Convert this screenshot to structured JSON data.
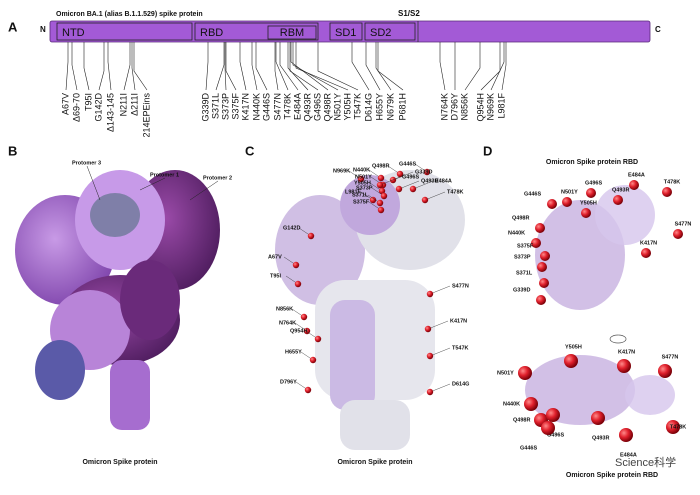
{
  "panel_a": {
    "label": "A",
    "title": "Omicron BA.1 (alias B.1.1.529) spike protein",
    "cleavage": "S1/S2",
    "n_term": "N",
    "c_term": "C",
    "domains": [
      "NTD",
      "RBD",
      "RBM",
      "SD1",
      "SD2"
    ],
    "mutations": [
      "A67V",
      "Δ69-70",
      "T95I",
      "G142D",
      "Δ143-145",
      "N211I",
      "Δ211I",
      "214EPEins",
      "G339D",
      "S371L",
      "S373P",
      "S375F",
      "K417N",
      "N440K",
      "G446S",
      "S477N",
      "T478K",
      "E484A",
      "Q493R",
      "G496S",
      "Q498R",
      "N501Y",
      "Y505H",
      "T547K",
      "D614G",
      "H655Y",
      "N679K",
      "P681H",
      "N764K",
      "D796Y",
      "N856K",
      "Q954H",
      "N969K",
      "L981F"
    ]
  },
  "panel_b": {
    "label": "B",
    "protomers": [
      "Protomer 3",
      "Protomer 1",
      "Protomer 2"
    ],
    "caption": "Omicron Spike protein"
  },
  "panel_c": {
    "label": "C",
    "mutations": [
      "G142D",
      "A67V",
      "T95I",
      "L981F",
      "N969K",
      "N440K",
      "Q498R",
      "G446S",
      "G339D",
      "N501Y",
      "Y505H",
      "S373P",
      "S371L",
      "S375F",
      "G496S",
      "Q493R",
      "E484A",
      "T478K",
      "S477N",
      "K417N",
      "T547K",
      "D614G",
      "N856K",
      "N764K",
      "Q954H",
      "H655Y",
      "D796Y"
    ],
    "caption": "Omicron Spike protein"
  },
  "panel_d": {
    "label": "D",
    "title": "Omicron Spike protein RBD",
    "top_view": [
      "G446S",
      "N501Y",
      "G496S",
      "Q493R",
      "E484A",
      "T478K",
      "Y505H",
      "Q498R",
      "N440K",
      "K417N",
      "S477N",
      "S375F",
      "S373P",
      "S371L",
      "G339D"
    ],
    "bottom_view": [
      "Y505H",
      "K417N",
      "S477N",
      "N501Y",
      "N440K",
      "Q498R",
      "G496S",
      "Q493R",
      "T478K",
      "G446S",
      "E484A"
    ],
    "caption": "Omicron Spike protein RBD"
  },
  "watermark": "Science科学"
}
